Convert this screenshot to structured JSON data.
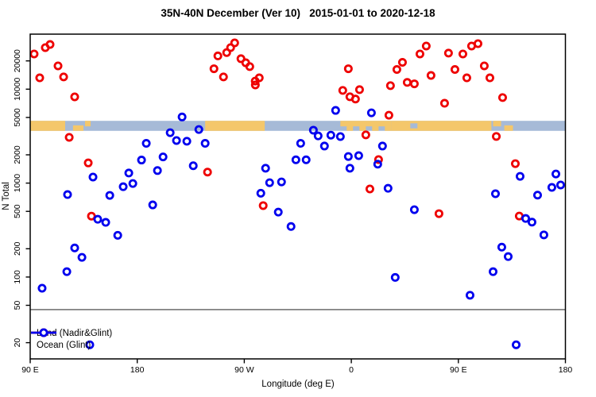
{
  "chart_data": {
    "type": "scatter",
    "title": "35N-40N December (Ver 10)   2015-01-01 to 2020-12-18",
    "xlabel": "Longitude (deg E)",
    "ylabel": "N Total",
    "x_axis": {
      "unit": "deg E (wraps eastward from 90E through the dateline)",
      "range_deg": [
        90,
        540
      ],
      "ticks": [
        {
          "deg": 90,
          "label": "90 E"
        },
        {
          "deg": 180,
          "label": "180"
        },
        {
          "deg": 270,
          "label": "90 W"
        },
        {
          "deg": 360,
          "label": "0"
        },
        {
          "deg": 450,
          "label": "90 E"
        },
        {
          "deg": 540,
          "label": "180"
        }
      ]
    },
    "y_axis": {
      "scale": "log10",
      "ticks": [
        {
          "value": 20000,
          "label": "20000"
        },
        {
          "value": 10000,
          "label": "10000"
        },
        {
          "value": 5000,
          "label": "5000"
        },
        {
          "value": 2000,
          "label": "2000"
        },
        {
          "value": 1000,
          "label": "1000"
        },
        {
          "value": 500,
          "label": "500"
        },
        {
          "value": 200,
          "label": "200"
        },
        {
          "value": 100,
          "label": "100"
        },
        {
          "value": 50,
          "label": "50"
        },
        {
          "value": 20,
          "label": "20"
        }
      ]
    },
    "reference_line_n": 45,
    "latitude_band": {
      "description": "35N-40N land/ocean strip drawn across plot",
      "n_range": [
        3600,
        4600
      ],
      "ocean_color": "#a6bad7",
      "land_color": "#f4c76b",
      "land_segments": [
        {
          "from": 90.0,
          "to": 119.4,
          "part": "full"
        },
        {
          "from": 126.0,
          "to": 134.8,
          "part": "bottom"
        },
        {
          "from": 136.1,
          "to": 140.8,
          "part": "top"
        },
        {
          "from": 237.1,
          "to": 287.2,
          "part": "full"
        },
        {
          "from": 350.8,
          "to": 393.6,
          "part": "top"
        },
        {
          "from": 356.1,
          "to": 361.4,
          "part": "bottom"
        },
        {
          "from": 366.8,
          "to": 372.2,
          "part": "bottom"
        },
        {
          "from": 377.5,
          "to": 382.9,
          "part": "bottom"
        },
        {
          "from": 388.2,
          "to": 393.6,
          "part": "bottom"
        },
        {
          "from": 393.6,
          "to": 477.8,
          "part": "full"
        },
        {
          "from": 479.2,
          "to": 485.9,
          "part": "top"
        },
        {
          "from": 488.6,
          "to": 495.9,
          "part": "bottom"
        }
      ],
      "ocean_patches": [
        {
          "from": 409.6,
          "to": 415.6,
          "part": "middle"
        }
      ]
    },
    "series": [
      {
        "name": "Land (Nadir&Glint)",
        "color": "#ee0000",
        "points": [
          [
            93.3,
            23700
          ],
          [
            98.0,
            13200
          ],
          [
            102.7,
            27700
          ],
          [
            106.7,
            29900
          ],
          [
            113.4,
            17700
          ],
          [
            118.1,
            13500
          ],
          [
            122.8,
            3070
          ],
          [
            127.4,
            8280
          ],
          [
            138.8,
            1640
          ],
          [
            141.5,
            445
          ],
          [
            239.1,
            1310
          ],
          [
            244.5,
            16500
          ],
          [
            247.8,
            22600
          ],
          [
            252.5,
            13500
          ],
          [
            255.2,
            24500
          ],
          [
            258.5,
            27700
          ],
          [
            261.9,
            31100
          ],
          [
            267.2,
            21100
          ],
          [
            271.2,
            19100
          ],
          [
            274.6,
            17400
          ],
          [
            279.2,
            12200
          ],
          [
            279.3,
            11100
          ],
          [
            282.6,
            13200
          ],
          [
            285.9,
            576
          ],
          [
            352.8,
            9700
          ],
          [
            357.5,
            16500
          ],
          [
            358.8,
            8300
          ],
          [
            363.5,
            7850
          ],
          [
            366.9,
            9880
          ],
          [
            372.2,
            3260
          ],
          [
            375.6,
            866
          ],
          [
            382.9,
            1780
          ],
          [
            391.6,
            5280
          ],
          [
            392.9,
            10900
          ],
          [
            398.3,
            16200
          ],
          [
            403.0,
            19300
          ],
          [
            407.0,
            11800
          ],
          [
            413.0,
            11400
          ],
          [
            417.7,
            23700
          ],
          [
            423.0,
            28800
          ],
          [
            427.0,
            14000
          ],
          [
            433.7,
            473
          ],
          [
            438.4,
            7080
          ],
          [
            441.7,
            24200
          ],
          [
            447.1,
            16200
          ],
          [
            453.8,
            23700
          ],
          [
            457.1,
            13200
          ],
          [
            461.1,
            28800
          ],
          [
            466.5,
            30500
          ],
          [
            471.8,
            17700
          ],
          [
            476.5,
            13200
          ],
          [
            481.9,
            3140
          ],
          [
            487.2,
            8140
          ],
          [
            497.9,
            1610
          ],
          [
            501.2,
            446
          ]
        ]
      },
      {
        "name": "Ocean (Glint)",
        "color": "#0000ee",
        "points": [
          [
            100.0,
            76
          ],
          [
            120.8,
            114
          ],
          [
            121.4,
            755
          ],
          [
            127.4,
            204
          ],
          [
            133.5,
            162
          ],
          [
            140.1,
            19
          ],
          [
            142.8,
            1160
          ],
          [
            146.8,
            412
          ],
          [
            153.5,
            382
          ],
          [
            156.9,
            740
          ],
          [
            163.6,
            278
          ],
          [
            168.2,
            915
          ],
          [
            172.9,
            1280
          ],
          [
            176.3,
            990
          ],
          [
            183.6,
            1760
          ],
          [
            187.6,
            2650
          ],
          [
            193.0,
            586
          ],
          [
            197.0,
            1360
          ],
          [
            201.7,
            1900
          ],
          [
            207.7,
            3440
          ],
          [
            213.0,
            2840
          ],
          [
            217.7,
            5060
          ],
          [
            221.7,
            2790
          ],
          [
            227.1,
            1530
          ],
          [
            231.8,
            3720
          ],
          [
            237.1,
            2650
          ],
          [
            283.9,
            780
          ],
          [
            287.9,
            1440
          ],
          [
            291.3,
            1010
          ],
          [
            298.6,
            491
          ],
          [
            301.3,
            1030
          ],
          [
            309.3,
            345
          ],
          [
            313.4,
            1770
          ],
          [
            317.4,
            2650
          ],
          [
            322.0,
            1770
          ],
          [
            328.1,
            3660
          ],
          [
            332.1,
            3180
          ],
          [
            337.4,
            2480
          ],
          [
            342.8,
            3240
          ],
          [
            346.8,
            5940
          ],
          [
            350.8,
            3130
          ],
          [
            357.5,
            1920
          ],
          [
            358.8,
            1440
          ],
          [
            366.2,
            1960
          ],
          [
            376.9,
            5600
          ],
          [
            382.2,
            1590
          ],
          [
            386.2,
            2480
          ],
          [
            390.9,
            880
          ],
          [
            396.9,
            99
          ],
          [
            413.0,
            521
          ],
          [
            459.8,
            64
          ],
          [
            479.2,
            114
          ],
          [
            481.2,
            770
          ],
          [
            486.5,
            208
          ],
          [
            491.9,
            165
          ],
          [
            498.6,
            19
          ],
          [
            501.9,
            1180
          ],
          [
            506.6,
            420
          ],
          [
            511.9,
            384
          ],
          [
            516.6,
            745
          ],
          [
            521.9,
            281
          ],
          [
            528.6,
            900
          ],
          [
            532.0,
            1250
          ],
          [
            536.0,
            955
          ]
        ]
      }
    ],
    "legend_position": "bottom-left",
    "grid": "off",
    "frame_color": "#000000"
  }
}
